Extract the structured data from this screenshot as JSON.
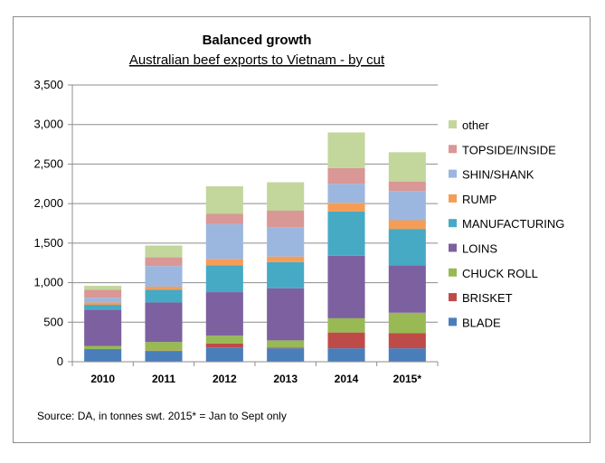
{
  "chart_data": {
    "type": "bar",
    "stacked": true,
    "title": "Balanced growth",
    "subtitle": "Australian beef exports to Vietnam - by cut",
    "categories": [
      "2010",
      "2011",
      "2012",
      "2013",
      "2014",
      "2015*"
    ],
    "ylim": [
      0,
      3500
    ],
    "yticks": [
      0,
      500,
      1000,
      1500,
      2000,
      2500,
      3000,
      3500
    ],
    "ytick_labels": [
      "0",
      "500",
      "1,000",
      "1,500",
      "2,000",
      "2,500",
      "3,000",
      "3,500"
    ],
    "grid": true,
    "legend_position": "right",
    "series": [
      {
        "name": "BLADE",
        "color": "#4a7ebb",
        "values": [
          150,
          130,
          180,
          170,
          170,
          170
        ]
      },
      {
        "name": "BRISKET",
        "color": "#be4b48",
        "values": [
          10,
          10,
          50,
          10,
          200,
          190
        ]
      },
      {
        "name": "CHUCK ROLL",
        "color": "#98b954",
        "values": [
          40,
          110,
          100,
          90,
          180,
          260
        ]
      },
      {
        "name": "LOINS",
        "color": "#7d60a0",
        "values": [
          460,
          500,
          550,
          660,
          790,
          600
        ]
      },
      {
        "name": "MANUFACTURING",
        "color": "#46aac5",
        "values": [
          60,
          160,
          340,
          330,
          560,
          460
        ]
      },
      {
        "name": "RUMP",
        "color": "#f59d56",
        "values": [
          30,
          40,
          80,
          70,
          110,
          110
        ]
      },
      {
        "name": "SHIN/SHANK",
        "color": "#9bb7e0",
        "values": [
          60,
          260,
          440,
          370,
          240,
          370
        ]
      },
      {
        "name": "TOPSIDE/INSIDE",
        "color": "#d99795",
        "values": [
          100,
          110,
          130,
          210,
          200,
          120
        ]
      },
      {
        "name": "other",
        "color": "#c3d69b",
        "values": [
          50,
          150,
          350,
          360,
          450,
          370
        ]
      }
    ],
    "source": "Source: DA, in tonnes swt. 2015* = Jan to Sept only"
  }
}
